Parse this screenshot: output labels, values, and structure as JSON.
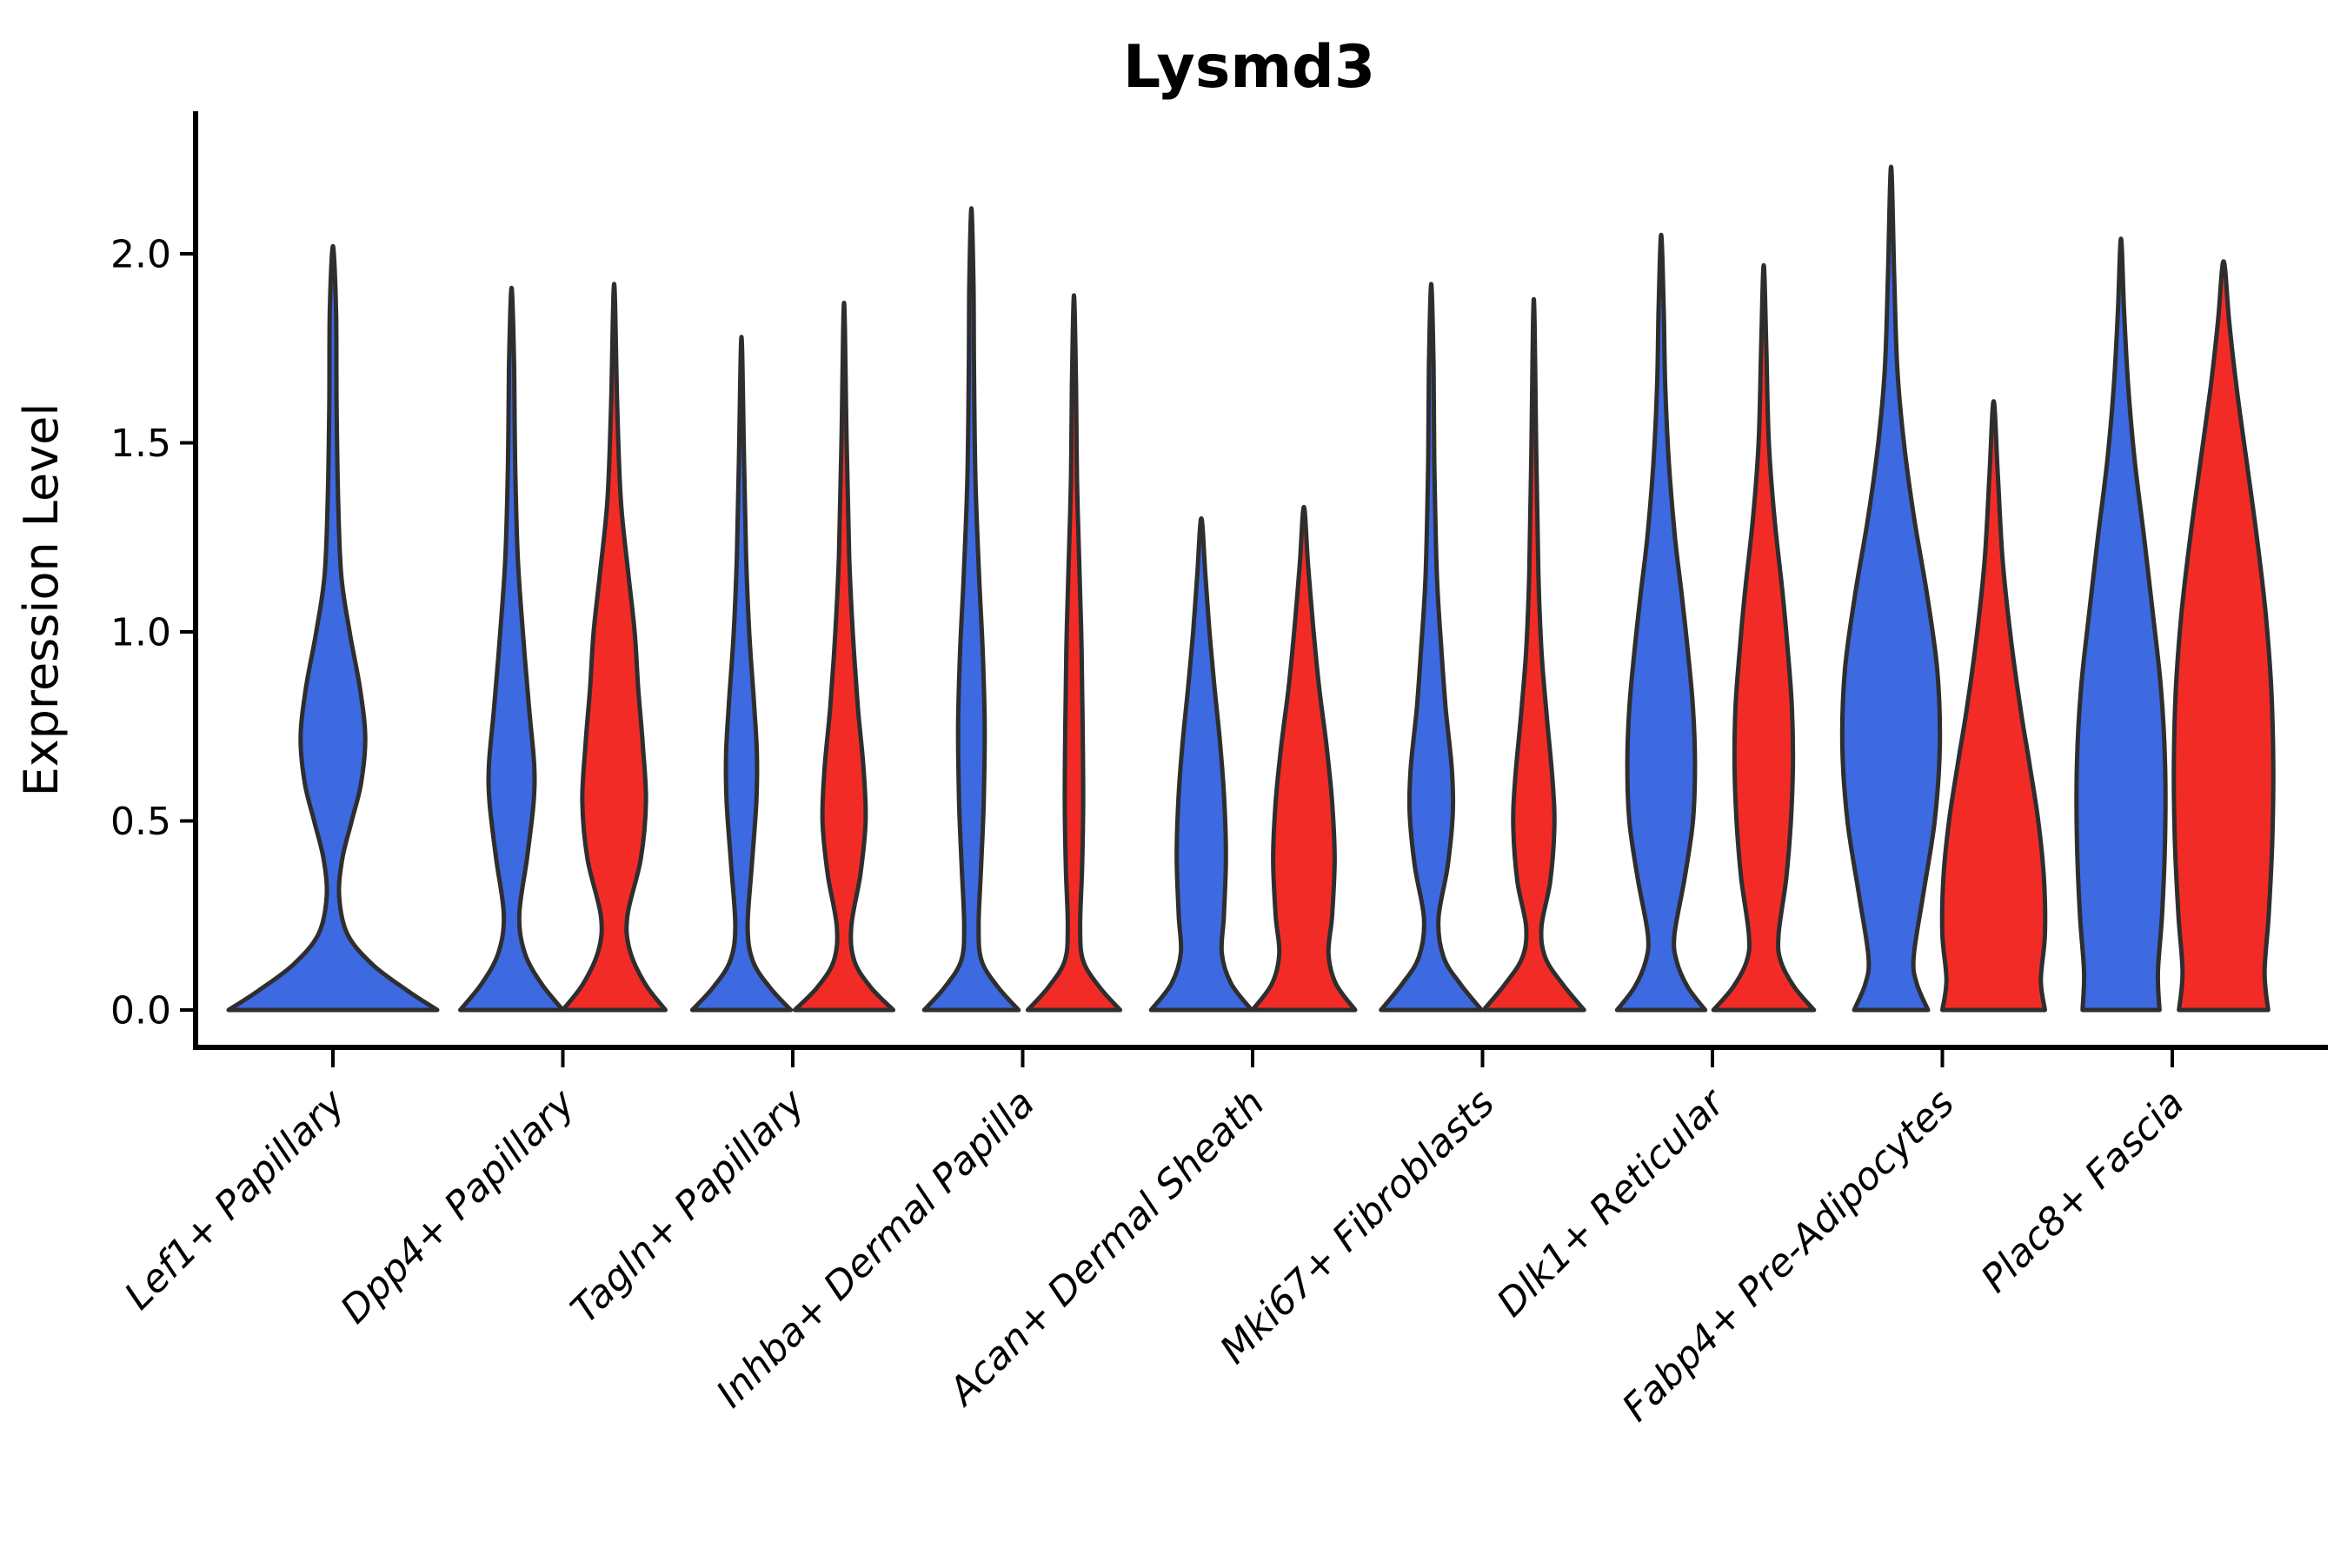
{
  "figure": {
    "title": "Lysmd3"
  },
  "chart_data": {
    "type": "violin",
    "title": "Lysmd3",
    "xlabel": "",
    "ylabel": "Expression Level",
    "ylim": [
      0,
      2.37
    ],
    "yticks": [
      "0.0",
      "0.5",
      "1.0",
      "1.5",
      "2.0"
    ],
    "ytick_values": [
      0.0,
      0.5,
      1.0,
      1.5,
      2.0
    ],
    "grid": false,
    "legend_position": "none",
    "colors": {
      "blue": "#3D69E1",
      "red": "#F32B27",
      "outline": "#2E2E2E",
      "axis": "#000000"
    },
    "categories": [
      "Lef1+ Papillary",
      "Dpp4+ Papillary",
      "Tagln+ Papillary",
      "Inhba+ Dermal Papilla",
      "Acan+ Dermal Sheath",
      "Mki67+ Fibroblasts",
      "Dlk1+ Reticular",
      "Fabp4+ Pre-Adipocytes",
      "Plac8+ Fascia"
    ],
    "groups": [
      {
        "category": "Lef1+ Papillary",
        "violins": [
          {
            "color": "blue",
            "peak": 2.02,
            "profile": [
              [
                0,
                1.0
              ],
              [
                0.05,
                0.72
              ],
              [
                0.12,
                0.38
              ],
              [
                0.2,
                0.14
              ],
              [
                0.3,
                0.06
              ],
              [
                0.4,
                0.09
              ],
              [
                0.5,
                0.18
              ],
              [
                0.6,
                0.27
              ],
              [
                0.72,
                0.31
              ],
              [
                0.85,
                0.26
              ],
              [
                1.0,
                0.16
              ],
              [
                1.15,
                0.08
              ],
              [
                1.35,
                0.05
              ],
              [
                1.6,
                0.035
              ],
              [
                1.85,
                0.03
              ],
              [
                2.02,
                0
              ]
            ]
          }
        ]
      },
      {
        "category": "Dpp4+ Papillary",
        "violins": [
          {
            "color": "blue",
            "peak": 1.91,
            "profile": [
              [
                0,
                1.0
              ],
              [
                0.07,
                0.58
              ],
              [
                0.15,
                0.26
              ],
              [
                0.25,
                0.15
              ],
              [
                0.4,
                0.3
              ],
              [
                0.55,
                0.43
              ],
              [
                0.65,
                0.44
              ],
              [
                0.8,
                0.34
              ],
              [
                1.0,
                0.22
              ],
              [
                1.2,
                0.12
              ],
              [
                1.45,
                0.07
              ],
              [
                1.7,
                0.05
              ],
              [
                1.91,
                0
              ]
            ]
          },
          {
            "color": "red",
            "peak": 1.92,
            "profile": [
              [
                0,
                1.0
              ],
              [
                0.07,
                0.6
              ],
              [
                0.16,
                0.3
              ],
              [
                0.25,
                0.26
              ],
              [
                0.4,
                0.52
              ],
              [
                0.55,
                0.62
              ],
              [
                0.7,
                0.56
              ],
              [
                0.85,
                0.47
              ],
              [
                1.0,
                0.4
              ],
              [
                1.15,
                0.28
              ],
              [
                1.35,
                0.13
              ],
              [
                1.6,
                0.06
              ],
              [
                1.92,
                0
              ]
            ]
          }
        ]
      },
      {
        "category": "Tagln+ Papillary",
        "violins": [
          {
            "color": "blue",
            "peak": 1.78,
            "profile": [
              [
                0,
                0.96
              ],
              [
                0.06,
                0.55
              ],
              [
                0.13,
                0.22
              ],
              [
                0.22,
                0.12
              ],
              [
                0.38,
                0.2
              ],
              [
                0.55,
                0.29
              ],
              [
                0.68,
                0.3
              ],
              [
                0.82,
                0.24
              ],
              [
                1.0,
                0.15
              ],
              [
                1.2,
                0.09
              ],
              [
                1.45,
                0.05
              ],
              [
                1.78,
                0
              ]
            ]
          },
          {
            "color": "red",
            "peak": 1.87,
            "profile": [
              [
                0,
                0.96
              ],
              [
                0.06,
                0.52
              ],
              [
                0.13,
                0.2
              ],
              [
                0.22,
                0.14
              ],
              [
                0.36,
                0.32
              ],
              [
                0.5,
                0.42
              ],
              [
                0.64,
                0.38
              ],
              [
                0.8,
                0.27
              ],
              [
                1.0,
                0.17
              ],
              [
                1.2,
                0.1
              ],
              [
                1.5,
                0.05
              ],
              [
                1.87,
                0
              ]
            ]
          }
        ]
      },
      {
        "category": "Inhba+ Dermal Papilla",
        "violins": [
          {
            "color": "blue",
            "peak": 2.12,
            "profile": [
              [
                0,
                0.92
              ],
              [
                0.06,
                0.52
              ],
              [
                0.13,
                0.2
              ],
              [
                0.22,
                0.14
              ],
              [
                0.38,
                0.19
              ],
              [
                0.55,
                0.24
              ],
              [
                0.75,
                0.26
              ],
              [
                0.95,
                0.22
              ],
              [
                1.15,
                0.15
              ],
              [
                1.4,
                0.08
              ],
              [
                1.7,
                0.05
              ],
              [
                1.92,
                0.04
              ],
              [
                2.12,
                0
              ]
            ]
          },
          {
            "color": "red",
            "peak": 1.89,
            "profile": [
              [
                0,
                0.9
              ],
              [
                0.06,
                0.5
              ],
              [
                0.13,
                0.18
              ],
              [
                0.22,
                0.12
              ],
              [
                0.38,
                0.16
              ],
              [
                0.55,
                0.18
              ],
              [
                0.75,
                0.17
              ],
              [
                0.95,
                0.15
              ],
              [
                1.15,
                0.11
              ],
              [
                1.4,
                0.06
              ],
              [
                1.65,
                0.04
              ],
              [
                1.89,
                0
              ]
            ]
          }
        ]
      },
      {
        "category": "Acan+ Dermal Sheath",
        "violins": [
          {
            "color": "blue",
            "peak": 1.3,
            "profile": [
              [
                0,
                0.98
              ],
              [
                0.07,
                0.58
              ],
              [
                0.15,
                0.4
              ],
              [
                0.25,
                0.44
              ],
              [
                0.4,
                0.48
              ],
              [
                0.55,
                0.45
              ],
              [
                0.7,
                0.37
              ],
              [
                0.85,
                0.26
              ],
              [
                1.0,
                0.16
              ],
              [
                1.15,
                0.08
              ],
              [
                1.3,
                0
              ]
            ]
          },
          {
            "color": "red",
            "peak": 1.33,
            "profile": [
              [
                0,
                1.0
              ],
              [
                0.07,
                0.62
              ],
              [
                0.15,
                0.48
              ],
              [
                0.25,
                0.55
              ],
              [
                0.4,
                0.6
              ],
              [
                0.55,
                0.55
              ],
              [
                0.7,
                0.44
              ],
              [
                0.85,
                0.3
              ],
              [
                1.0,
                0.19
              ],
              [
                1.18,
                0.08
              ],
              [
                1.33,
                0
              ]
            ]
          }
        ]
      },
      {
        "category": "Mki67+ Fibroblasts",
        "violins": [
          {
            "color": "blue",
            "peak": 1.92,
            "profile": [
              [
                0,
                0.98
              ],
              [
                0.07,
                0.56
              ],
              [
                0.14,
                0.24
              ],
              [
                0.24,
                0.14
              ],
              [
                0.38,
                0.32
              ],
              [
                0.52,
                0.42
              ],
              [
                0.64,
                0.4
              ],
              [
                0.8,
                0.28
              ],
              [
                0.95,
                0.2
              ],
              [
                1.15,
                0.11
              ],
              [
                1.45,
                0.06
              ],
              [
                1.7,
                0.045
              ],
              [
                1.92,
                0
              ]
            ]
          },
          {
            "color": "red",
            "peak": 1.88,
            "profile": [
              [
                0,
                0.98
              ],
              [
                0.07,
                0.55
              ],
              [
                0.14,
                0.22
              ],
              [
                0.22,
                0.15
              ],
              [
                0.34,
                0.32
              ],
              [
                0.48,
                0.4
              ],
              [
                0.6,
                0.37
              ],
              [
                0.78,
                0.25
              ],
              [
                0.95,
                0.15
              ],
              [
                1.15,
                0.09
              ],
              [
                1.45,
                0.05
              ],
              [
                1.88,
                0
              ]
            ]
          }
        ]
      },
      {
        "category": "Dlk1+ Reticular",
        "violins": [
          {
            "color": "blue",
            "peak": 2.05,
            "profile": [
              [
                0,
                0.86
              ],
              [
                0.06,
                0.52
              ],
              [
                0.13,
                0.3
              ],
              [
                0.2,
                0.26
              ],
              [
                0.35,
                0.46
              ],
              [
                0.5,
                0.62
              ],
              [
                0.65,
                0.66
              ],
              [
                0.8,
                0.62
              ],
              [
                0.95,
                0.52
              ],
              [
                1.1,
                0.4
              ],
              [
                1.25,
                0.27
              ],
              [
                1.45,
                0.15
              ],
              [
                1.65,
                0.08
              ],
              [
                1.85,
                0.05
              ],
              [
                2.05,
                0
              ]
            ]
          },
          {
            "color": "red",
            "peak": 1.97,
            "profile": [
              [
                0,
                0.98
              ],
              [
                0.06,
                0.6
              ],
              [
                0.13,
                0.33
              ],
              [
                0.2,
                0.29
              ],
              [
                0.35,
                0.44
              ],
              [
                0.5,
                0.53
              ],
              [
                0.65,
                0.57
              ],
              [
                0.8,
                0.55
              ],
              [
                0.95,
                0.47
              ],
              [
                1.1,
                0.37
              ],
              [
                1.3,
                0.21
              ],
              [
                1.5,
                0.1
              ],
              [
                1.75,
                0.05
              ],
              [
                1.97,
                0
              ]
            ]
          }
        ]
      },
      {
        "category": "Fabp4+ Pre-Adipocytes",
        "violins": [
          {
            "color": "blue",
            "peak": 2.23,
            "profile": [
              [
                0,
                0.72
              ],
              [
                0.07,
                0.5
              ],
              [
                0.14,
                0.44
              ],
              [
                0.3,
                0.62
              ],
              [
                0.5,
                0.85
              ],
              [
                0.7,
                0.95
              ],
              [
                0.9,
                0.9
              ],
              [
                1.1,
                0.7
              ],
              [
                1.3,
                0.45
              ],
              [
                1.5,
                0.25
              ],
              [
                1.7,
                0.12
              ],
              [
                1.95,
                0.06
              ],
              [
                2.23,
                0
              ]
            ]
          },
          {
            "color": "red",
            "peak": 1.61,
            "profile": [
              [
                0,
                1.0
              ],
              [
                0.08,
                0.92
              ],
              [
                0.2,
                1.0
              ],
              [
                0.35,
                0.98
              ],
              [
                0.5,
                0.87
              ],
              [
                0.65,
                0.7
              ],
              [
                0.8,
                0.52
              ],
              [
                1.0,
                0.32
              ],
              [
                1.2,
                0.17
              ],
              [
                1.42,
                0.08
              ],
              [
                1.61,
                0
              ]
            ]
          }
        ]
      },
      {
        "category": "Plac8+ Fascia",
        "violins": [
          {
            "color": "blue",
            "peak": 2.04,
            "profile": [
              [
                0,
                0.75
              ],
              [
                0.1,
                0.72
              ],
              [
                0.25,
                0.8
              ],
              [
                0.45,
                0.86
              ],
              [
                0.65,
                0.86
              ],
              [
                0.85,
                0.78
              ],
              [
                1.05,
                0.62
              ],
              [
                1.25,
                0.45
              ],
              [
                1.45,
                0.27
              ],
              [
                1.65,
                0.14
              ],
              [
                1.85,
                0.06
              ],
              [
                2.04,
                0
              ]
            ]
          },
          {
            "color": "red",
            "peak": 1.98,
            "profile": [
              [
                0,
                0.87
              ],
              [
                0.1,
                0.8
              ],
              [
                0.25,
                0.88
              ],
              [
                0.45,
                0.95
              ],
              [
                0.65,
                0.97
              ],
              [
                0.85,
                0.93
              ],
              [
                1.05,
                0.82
              ],
              [
                1.25,
                0.65
              ],
              [
                1.45,
                0.45
              ],
              [
                1.65,
                0.25
              ],
              [
                1.82,
                0.11
              ],
              [
                1.98,
                0
              ]
            ]
          }
        ]
      }
    ]
  }
}
